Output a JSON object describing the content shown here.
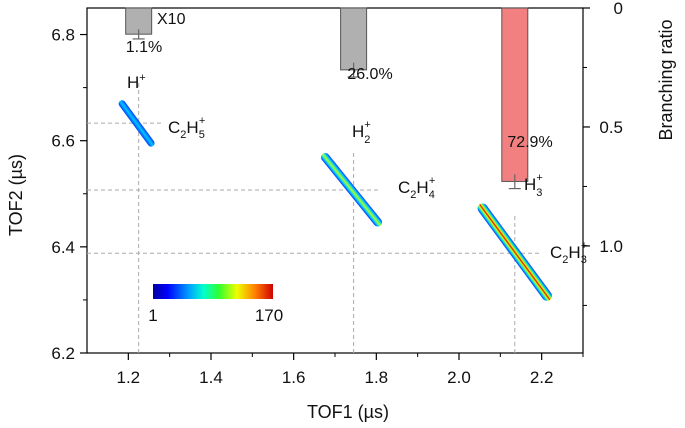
{
  "chart_data": {
    "type": "heatmap",
    "xlabel": "TOF1 (µs)",
    "ylabel": "TOF2 (µs)",
    "y2label": "Branching ratio",
    "xlim": [
      1.1,
      2.3
    ],
    "ylim": [
      6.2,
      6.85
    ],
    "y2lim": [
      0,
      1.45
    ],
    "xticks": [
      "1.2",
      "1.4",
      "1.6",
      "1.8",
      "2.0",
      "2.2"
    ],
    "xtick_values": [
      1.2,
      1.4,
      1.6,
      1.8,
      2.0,
      2.2
    ],
    "yticks": [
      "6.2",
      "6.4",
      "6.6",
      "6.8"
    ],
    "ytick_values": [
      6.2,
      6.4,
      6.6,
      6.8
    ],
    "y2ticks": [
      "0",
      "0.5",
      "1.0"
    ],
    "y2tick_values": [
      0,
      0.5,
      1.0
    ],
    "colorbar": {
      "min_label": "1",
      "max_label": "170",
      "min": 1,
      "max": 170
    },
    "coincidence_islands": [
      {
        "name": "H+ / C2H5+",
        "x_range": [
          1.18,
          1.26
        ],
        "y_range": [
          6.675,
          6.59
        ],
        "tof1": 1.225,
        "tof2": 6.633,
        "peak_count": 40
      },
      {
        "name": "H2+ / C2H4+",
        "x_range": [
          1.67,
          1.81
        ],
        "y_range": [
          6.575,
          6.44
        ],
        "tof1": 1.745,
        "tof2": 6.507,
        "peak_count": 110
      },
      {
        "name": "H3+ / C2H3+",
        "x_range": [
          2.05,
          2.22
        ],
        "y_range": [
          6.48,
          6.3
        ],
        "tof1": 2.135,
        "tof2": 6.388,
        "peak_count": 170
      }
    ],
    "branching_bars": [
      {
        "channel": "H+ + C2H5+",
        "x": 1.225,
        "value": 0.11,
        "error": 0.02,
        "label": "1.1%",
        "scale_note": "X10",
        "color": "#b0b0b0"
      },
      {
        "channel": "H2+ + C2H4+",
        "x": 1.745,
        "value": 0.26,
        "error": 0.03,
        "label": "26.0%",
        "color": "#b0b0b0"
      },
      {
        "channel": "H3+ + C2H3+",
        "x": 2.135,
        "value": 0.729,
        "error": 0.03,
        "label": "72.9%",
        "color": "#f28080"
      }
    ],
    "ion_labels": [
      {
        "base": "H",
        "sub": "",
        "sup": "+"
      },
      {
        "base": "C",
        "sub": "2",
        "base2": "H",
        "sub2": "5",
        "sup": "+"
      },
      {
        "base": "H",
        "sub": "2",
        "sup": "+"
      },
      {
        "base": "C",
        "sub": "2",
        "base2": "H",
        "sub2": "4",
        "sup": "+"
      },
      {
        "base": "H",
        "sub": "3",
        "sup": "+"
      },
      {
        "base": "C",
        "sub": "2",
        "base2": "H",
        "sub2": "3",
        "sup": "+"
      }
    ]
  }
}
